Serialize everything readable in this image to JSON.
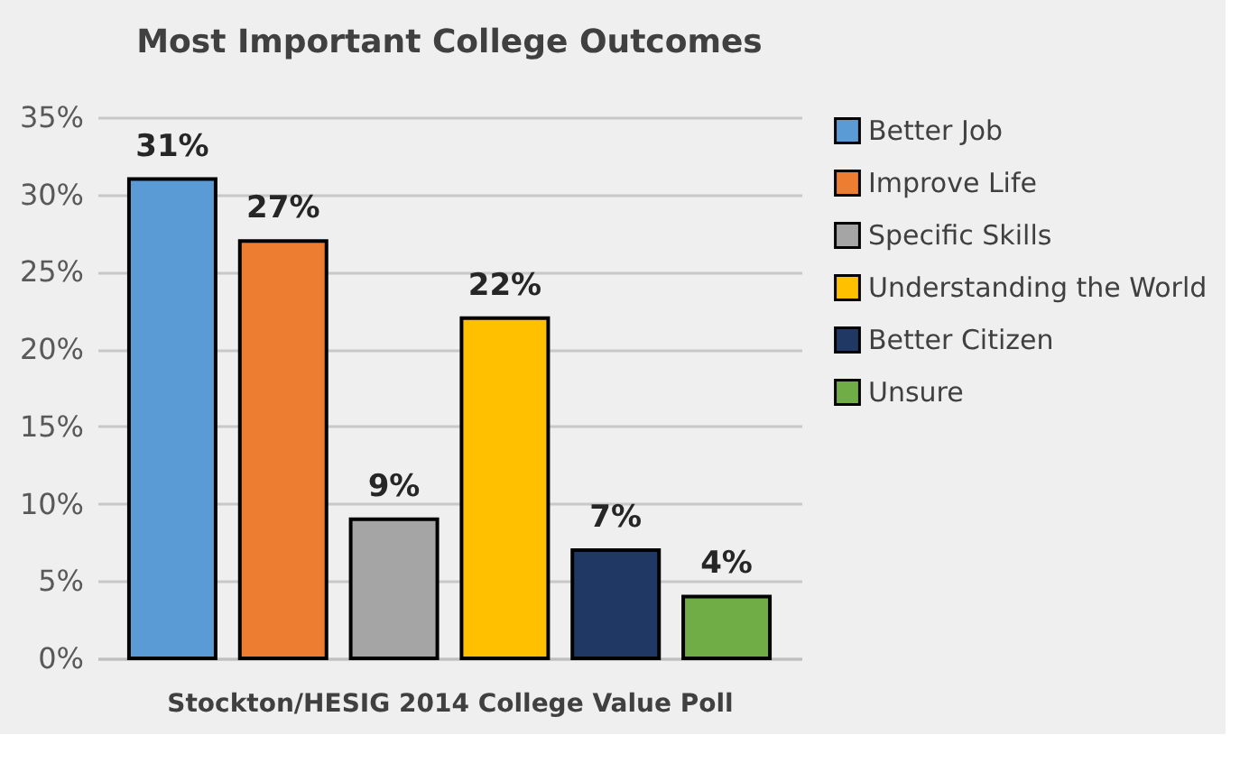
{
  "chart_data": {
    "type": "bar",
    "title": "Most Important College Outcomes",
    "xlabel": "Stockton/HESIG 2014 College Value Poll",
    "categories": [
      null
    ],
    "series": [
      {
        "name": "Better Job",
        "color": "#5b9bd5",
        "values": [
          31
        ],
        "value_labels": [
          "31%"
        ]
      },
      {
        "name": "Improve Life",
        "color": "#ed7d31",
        "values": [
          27
        ],
        "value_labels": [
          "27%"
        ]
      },
      {
        "name": "Specific Skills",
        "color": "#a5a5a5",
        "values": [
          9
        ],
        "value_labels": [
          "9%"
        ]
      },
      {
        "name": "Understanding the World",
        "color": "#ffc000",
        "values": [
          22
        ],
        "value_labels": [
          "22%"
        ]
      },
      {
        "name": "Better Citizen",
        "color": "#1f3864",
        "values": [
          7
        ],
        "value_labels": [
          "7%"
        ]
      },
      {
        "name": "Unsure",
        "color": "#70ad47",
        "values": [
          4
        ],
        "value_labels": [
          "4%"
        ]
      }
    ],
    "ylim": [
      0,
      35
    ],
    "yticks": [
      {
        "value": 0,
        "label": "0%"
      },
      {
        "value": 5,
        "label": "5%"
      },
      {
        "value": 10,
        "label": "10%"
      },
      {
        "value": 15,
        "label": "15%"
      },
      {
        "value": 20,
        "label": "20%"
      },
      {
        "value": 25,
        "label": "25%"
      },
      {
        "value": 30,
        "label": "30%"
      },
      {
        "value": 35,
        "label": "35%"
      }
    ],
    "grid": "y",
    "legend": "right",
    "tick_labels": "y"
  }
}
